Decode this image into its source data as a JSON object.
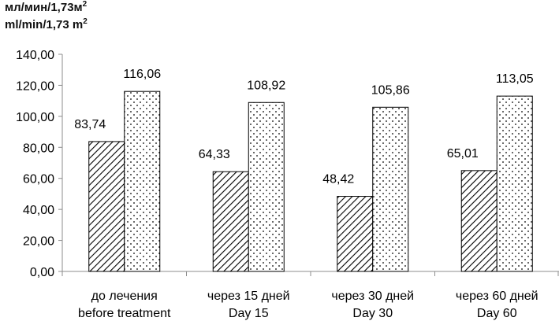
{
  "chart_data": {
    "type": "bar",
    "ylabel_ru": "мл/мин/1,73м",
    "ylabel_en": "ml/min/1,73 m",
    "ylabel_sup": "2",
    "ylim": [
      0,
      140
    ],
    "yticks": [
      "0,00",
      "20,00",
      "40,00",
      "60,00",
      "80,00",
      "100,00",
      "120,00",
      "140,00"
    ],
    "categories": [
      {
        "line1": "до лечения",
        "line2": "before treatment"
      },
      {
        "line1": "через 15 дней",
        "line2": "Day 15"
      },
      {
        "line1": "через 30 дней",
        "line2": "Day 30"
      },
      {
        "line1": "через 60 дней",
        "line2": "Day 60"
      }
    ],
    "series": [
      {
        "pattern": "hatch",
        "values": [
          83.74,
          64.33,
          48.42,
          65.01
        ],
        "labels": [
          "83,74",
          "64,33",
          "48,42",
          "65,01"
        ]
      },
      {
        "pattern": "dots",
        "values": [
          116.06,
          108.92,
          105.86,
          113.05
        ],
        "labels": [
          "116,06",
          "108,92",
          "105,86",
          "113,05"
        ]
      }
    ],
    "grid": false,
    "colors": {
      "bar_fill": "#ffffff",
      "stroke": "#000000",
      "axis": "#8c8c8c"
    }
  }
}
